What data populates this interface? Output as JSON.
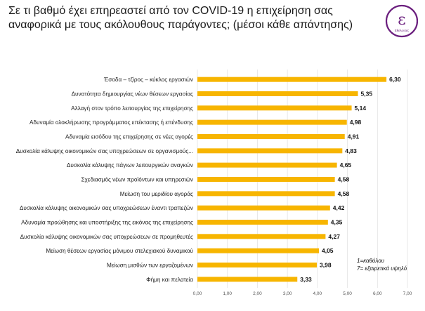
{
  "title": "Σε τι βαθμό έχει επηρεαστεί από τον COVID-19 η επιχείρηση σας αναφορικά με τους ακόλουθους παράγοντες; (μέσοι κάθε απάντησης)",
  "logo": {
    "letter": "ε",
    "caption": "Εθελοντές",
    "color": "#6b1f7e"
  },
  "note": {
    "line1": "1=καθόλου",
    "line2": "7= εξαιρετικά υψηλό"
  },
  "colors": {
    "bar": "#f7b500",
    "grid": "#e2e2e2"
  },
  "chart_data": {
    "type": "bar",
    "orientation": "horizontal",
    "categories": [
      "Έσοδα – τζίρος – κύκλος εργασιών",
      "Δυνατότητα δημιουργίας νέων θέσεων εργασίας",
      "Αλλαγή στον τρόπο λειτουργίας της επιχείρησης",
      "Αδυναμία ολοκλήρωσης προγράμματος επέκτασης ή επένδυσης",
      "Αδυναμία εισόδου της επιχείρησης σε νέες αγορές",
      "Δυσκολία κάλυψης οικονομικών σας υποχρεώσεων σε οργανισμούς...",
      "Δυσκολία κάλυψης πάγιων λειτουργικών αναγκών",
      "Σχεδιασμός νέων προϊόντων και υπηρεσιών",
      "Μείωση του μεριδίου αγοράς",
      "Δυσκολία κάλυψης οικονομικών σας υποχρεώσεων έναντι τραπεζών",
      "Αδυναμία προώθησης και υποστήριξης της εικόνας της επιχείρησης",
      "Δυσκολία κάλυψης οικονομικών σας υποχρεώσεων σε προμηθευτές",
      "Μείωση θέσεων εργασίας μόνιμου στελεχιακού δυναμικού",
      "Μείωση μισθών των εργαζομένων",
      "Φήμη και πελατεία"
    ],
    "values": [
      6.3,
      5.35,
      5.14,
      4.98,
      4.91,
      4.83,
      4.65,
      4.58,
      4.58,
      4.42,
      4.35,
      4.27,
      4.05,
      3.98,
      3.33
    ],
    "value_labels": [
      "6,30",
      "5,35",
      "5,14",
      "4,98",
      "4,91",
      "4,83",
      "4,65",
      "4,58",
      "4,58",
      "4,42",
      "4,35",
      "4,27",
      "4,05",
      "3,98",
      "3,33"
    ],
    "xlim": [
      0,
      7
    ],
    "xticks": [
      "0,00",
      "1,00",
      "2,00",
      "3,00",
      "4,00",
      "5,00",
      "6,00",
      "7,00"
    ],
    "grid": true,
    "title": "",
    "xlabel": "",
    "ylabel": ""
  }
}
